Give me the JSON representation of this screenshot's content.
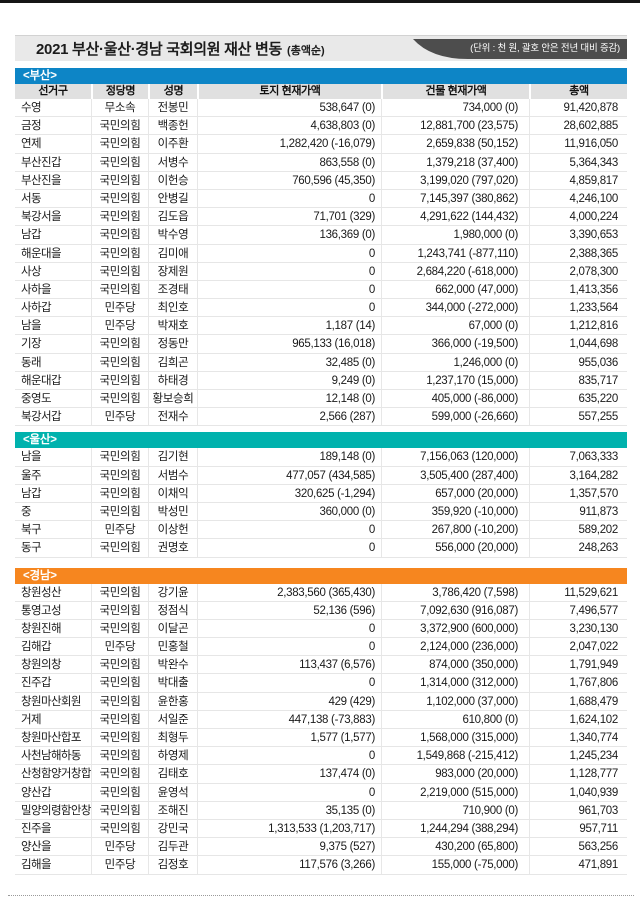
{
  "header": {
    "title": "2021 부산·울산·경남 국회의원 재산 변동",
    "title_suffix": "(총액순)",
    "unit_note": "(단위 : 천 원, 괄호 안은 전년 대비 증감)",
    "badge_color": "#4d4d4d"
  },
  "table": {
    "columns": [
      "선거구",
      "정당명",
      "성명",
      "토지 현재가액",
      "건물 현재가액",
      "총액"
    ]
  },
  "sections": [
    {
      "id": "busan",
      "label": "<부산>",
      "color": "#0d85c6",
      "show_columns": true,
      "rows": [
        [
          "수영",
          "무소속",
          "전봉민",
          "538,647 (0)",
          "734,000 (0)",
          "91,420,878"
        ],
        [
          "금정",
          "국민의힘",
          "백종헌",
          "4,638,803 (0)",
          "12,881,700 (23,575)",
          "28,602,885"
        ],
        [
          "연제",
          "국민의힘",
          "이주환",
          "1,282,420 (-16,079)",
          "2,659,838 (50,152)",
          "11,916,050"
        ],
        [
          "부산진갑",
          "국민의힘",
          "서병수",
          "863,558 (0)",
          "1,379,218 (37,400)",
          "5,364,343"
        ],
        [
          "부산진을",
          "국민의힘",
          "이헌승",
          "760,596 (45,350)",
          "3,199,020 (797,020)",
          "4,859,817"
        ],
        [
          "서동",
          "국민의힘",
          "안병길",
          "0",
          "7,145,397 (380,862)",
          "4,246,100"
        ],
        [
          "북강서을",
          "국민의힘",
          "김도읍",
          "71,701 (329)",
          "4,291,622 (144,432)",
          "4,000,224"
        ],
        [
          "남갑",
          "국민의힘",
          "박수영",
          "136,369 (0)",
          "1,980,000 (0)",
          "3,390,653"
        ],
        [
          "해운대을",
          "국민의힘",
          "김미애",
          "0",
          "1,243,741 (-877,110)",
          "2,388,365"
        ],
        [
          "사상",
          "국민의힘",
          "장제원",
          "0",
          "2,684,220 (-618,000)",
          "2,078,300"
        ],
        [
          "사하을",
          "국민의힘",
          "조경태",
          "0",
          "662,000 (47,000)",
          "1,413,356"
        ],
        [
          "사하갑",
          "민주당",
          "최인호",
          "0",
          "344,000 (-272,000)",
          "1,233,564"
        ],
        [
          "남을",
          "민주당",
          "박재호",
          "1,187 (14)",
          "67,000 (0)",
          "1,212,816"
        ],
        [
          "기장",
          "국민의힘",
          "정동만",
          "965,133 (16,018)",
          "366,000 (-19,500)",
          "1,044,698"
        ],
        [
          "동래",
          "국민의힘",
          "김희곤",
          "32,485 (0)",
          "1,246,000 (0)",
          "955,036"
        ],
        [
          "해운대갑",
          "국민의힘",
          "하태경",
          "9,249 (0)",
          "1,237,170 (15,000)",
          "835,717"
        ],
        [
          "중영도",
          "국민의힘",
          "황보승희",
          "12,148 (0)",
          "405,000 (-86,000)",
          "635,220"
        ],
        [
          "북강서갑",
          "민주당",
          "전재수",
          "2,566 (287)",
          "599,000 (-26,660)",
          "557,255"
        ]
      ]
    },
    {
      "id": "ulsan",
      "label": "<울산>",
      "color": "#00b2ad",
      "show_columns": false,
      "rows": [
        [
          "남을",
          "국민의힘",
          "김기현",
          "189,148 (0)",
          "7,156,063 (120,000)",
          "7,063,333"
        ],
        [
          "울주",
          "국민의힘",
          "서범수",
          "477,057 (434,585)",
          "3,505,400 (287,400)",
          "3,164,282"
        ],
        [
          "남갑",
          "국민의힘",
          "이채익",
          "320,625 (-1,294)",
          "657,000 (20,000)",
          "1,357,570"
        ],
        [
          "중",
          "국민의힘",
          "박성민",
          "360,000 (0)",
          "359,920 (-10,000)",
          "911,873"
        ],
        [
          "북구",
          "민주당",
          "이상헌",
          "0",
          "267,800 (-10,200)",
          "589,202"
        ],
        [
          "동구",
          "국민의힘",
          "권명호",
          "0",
          "556,000 (20,000)",
          "248,263"
        ]
      ]
    },
    {
      "id": "gyeongnam",
      "label": "<경남>",
      "color": "#f6861f",
      "show_columns": false,
      "rows": [
        [
          "창원성산",
          "국민의힘",
          "강기윤",
          "2,383,560 (365,430)",
          "3,786,420 (7,598)",
          "11,529,621"
        ],
        [
          "통영고성",
          "국민의힘",
          "정점식",
          "52,136 (596)",
          "7,092,630 (916,087)",
          "7,496,577"
        ],
        [
          "창원진해",
          "국민의힘",
          "이달곤",
          "0",
          "3,372,900 (600,000)",
          "3,230,130"
        ],
        [
          "김해갑",
          "민주당",
          "민홍철",
          "0",
          "2,124,000 (236,000)",
          "2,047,022"
        ],
        [
          "창원의창",
          "국민의힘",
          "박완수",
          "113,437 (6,576)",
          "874,000 (350,000)",
          "1,791,949"
        ],
        [
          "진주갑",
          "국민의힘",
          "박대출",
          "0",
          "1,314,000 (312,000)",
          "1,767,806"
        ],
        [
          "창원마산회원",
          "국민의힘",
          "윤한홍",
          "429 (429)",
          "1,102,000 (37,000)",
          "1,688,479"
        ],
        [
          "거제",
          "국민의힘",
          "서일준",
          "447,138 (-73,883)",
          "610,800 (0)",
          "1,624,102"
        ],
        [
          "창원마산합포",
          "국민의힘",
          "최형두",
          "1,577 (1,577)",
          "1,568,000 (315,000)",
          "1,340,774"
        ],
        [
          "사천남해하동",
          "국민의힘",
          "하영제",
          "0",
          "1,549,868 (-215,412)",
          "1,245,234"
        ],
        [
          "산청함양거창합천",
          "국민의힘",
          "김태호",
          "137,474 (0)",
          "983,000 (20,000)",
          "1,128,777"
        ],
        [
          "양산갑",
          "국민의힘",
          "윤영석",
          "0",
          "2,219,000 (515,000)",
          "1,040,939"
        ],
        [
          "밀양의령함안창녕",
          "국민의힘",
          "조해진",
          "35,135 (0)",
          "710,900 (0)",
          "961,703"
        ],
        [
          "진주을",
          "국민의힘",
          "강민국",
          "1,313,533 (1,203,717)",
          "1,244,294 (388,294)",
          "957,711"
        ],
        [
          "양산을",
          "민주당",
          "김두관",
          "9,375 (527)",
          "430,200 (65,800)",
          "563,256"
        ],
        [
          "김해을",
          "민주당",
          "김정호",
          "117,576 (3,266)",
          "155,000 (-75,000)",
          "471,891"
        ]
      ]
    }
  ]
}
